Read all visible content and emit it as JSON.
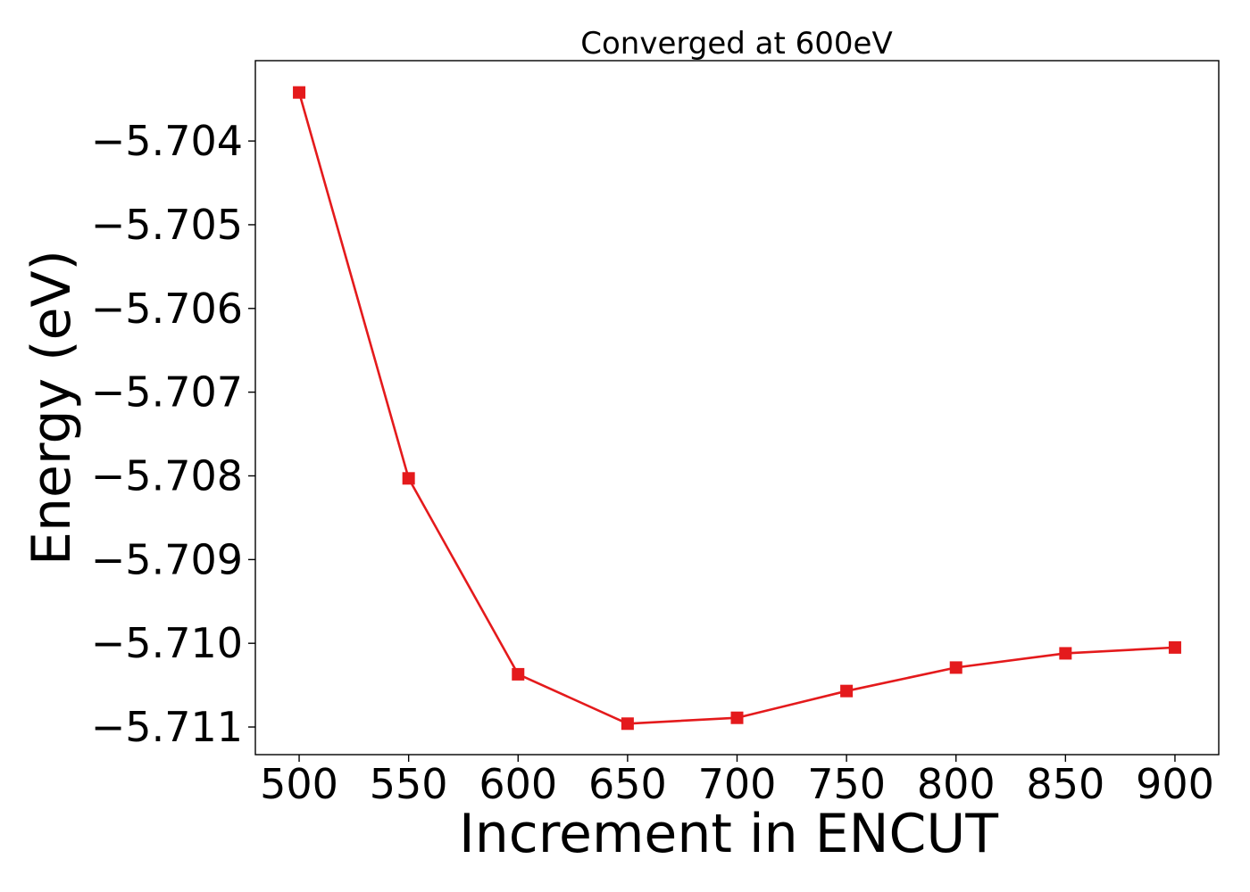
{
  "chart_data": {
    "type": "line",
    "title": "Converged at 600eV",
    "xlabel": "Increment in ENCUT",
    "ylabel": "Energy (eV)",
    "x": [
      500,
      550,
      600,
      650,
      700,
      750,
      800,
      850,
      900
    ],
    "series": [
      {
        "values": [
          -5.70342,
          -5.70803,
          -5.71037,
          -5.71096,
          -5.71089,
          -5.71057,
          -5.71029,
          -5.71012,
          -5.71005
        ],
        "color": "#e41a1c",
        "marker": "square"
      }
    ],
    "xticks": [
      500,
      550,
      600,
      650,
      700,
      750,
      800,
      850,
      900
    ],
    "xtick_labels": [
      "500",
      "550",
      "600",
      "650",
      "700",
      "750",
      "800",
      "850",
      "900"
    ],
    "yticks": [
      -5.704,
      -5.705,
      -5.706,
      -5.707,
      -5.708,
      -5.709,
      -5.71,
      -5.711
    ],
    "ytick_labels": [
      "−5.704",
      "−5.705",
      "−5.706",
      "−5.707",
      "−5.708",
      "−5.709",
      "−5.710",
      "−5.711"
    ],
    "xlim": [
      480,
      920
    ],
    "ylim": [
      -5.71133,
      -5.70304
    ],
    "grid": false,
    "legend": false
  }
}
